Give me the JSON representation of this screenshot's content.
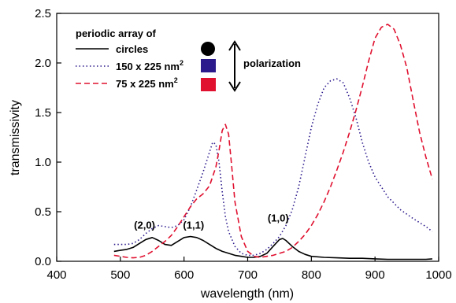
{
  "chart_data": {
    "type": "line",
    "xlabel": "wavelength (nm)",
    "ylabel": "transmissivity",
    "xlim": [
      400,
      1000
    ],
    "ylim": [
      0,
      2.5
    ],
    "x_ticks": [
      400,
      500,
      600,
      700,
      800,
      900,
      1000
    ],
    "y_ticks": [
      0.0,
      0.5,
      1.0,
      1.5,
      2.0,
      2.5
    ],
    "x_tick_labels": [
      "400",
      "500",
      "600",
      "700",
      "800",
      "900",
      "1000"
    ],
    "y_tick_labels": [
      "0.0",
      "0.5",
      "1.0",
      "1.5",
      "2.0",
      "2.5"
    ],
    "grid": false,
    "legend": {
      "placement": "top-left",
      "heading": "periodic array of",
      "entries": [
        {
          "label": "circles",
          "label_sup": "",
          "style": "solid",
          "color": "#000000",
          "swatch": "circle"
        },
        {
          "label": "150 x 225 nm",
          "label_sup": "2",
          "style": "dotted",
          "color": "#2b1a8c",
          "swatch": "square"
        },
        {
          "label": "75 x 225 nm",
          "label_sup": "2",
          "style": "dashed",
          "color": "#e0102f",
          "swatch": "square"
        }
      ],
      "polarization_label": "polarization"
    },
    "annotations": [
      {
        "text": "(2,0)",
        "x": 538,
        "y": 0.33
      },
      {
        "text": "(1,1)",
        "x": 615,
        "y": 0.33
      },
      {
        "text": "(1,0)",
        "x": 748,
        "y": 0.4
      }
    ],
    "series": [
      {
        "name": "circles",
        "color": "#000000",
        "style": "solid",
        "x": [
          490,
          500,
          510,
          520,
          530,
          540,
          550,
          560,
          570,
          580,
          590,
          600,
          610,
          620,
          630,
          640,
          650,
          660,
          670,
          680,
          690,
          700,
          710,
          720,
          730,
          740,
          750,
          755,
          760,
          770,
          780,
          790,
          800,
          820,
          840,
          860,
          880,
          900,
          920,
          940,
          960,
          980,
          990
        ],
        "y": [
          0.1,
          0.11,
          0.12,
          0.14,
          0.18,
          0.22,
          0.24,
          0.21,
          0.17,
          0.16,
          0.2,
          0.24,
          0.25,
          0.24,
          0.21,
          0.17,
          0.13,
          0.1,
          0.08,
          0.06,
          0.05,
          0.04,
          0.04,
          0.05,
          0.08,
          0.15,
          0.22,
          0.23,
          0.21,
          0.15,
          0.1,
          0.07,
          0.05,
          0.04,
          0.035,
          0.03,
          0.03,
          0.025,
          0.02,
          0.02,
          0.02,
          0.02,
          0.025
        ]
      },
      {
        "name": "150 x 225 nm2",
        "color": "#2b1a8c",
        "style": "dotted",
        "x": [
          490,
          500,
          510,
          520,
          530,
          540,
          550,
          560,
          570,
          580,
          590,
          600,
          610,
          620,
          630,
          640,
          645,
          650,
          655,
          660,
          665,
          670,
          680,
          690,
          700,
          710,
          720,
          730,
          740,
          750,
          760,
          770,
          780,
          790,
          800,
          810,
          820,
          830,
          840,
          850,
          860,
          870,
          880,
          890,
          900,
          920,
          940,
          960,
          980,
          990
        ],
        "y": [
          0.17,
          0.17,
          0.17,
          0.18,
          0.22,
          0.28,
          0.33,
          0.36,
          0.35,
          0.34,
          0.36,
          0.42,
          0.55,
          0.72,
          0.9,
          1.1,
          1.2,
          1.18,
          1.0,
          0.7,
          0.45,
          0.3,
          0.15,
          0.08,
          0.06,
          0.06,
          0.08,
          0.12,
          0.18,
          0.25,
          0.36,
          0.52,
          0.75,
          1.05,
          1.35,
          1.58,
          1.75,
          1.82,
          1.84,
          1.8,
          1.65,
          1.45,
          1.2,
          1.0,
          0.85,
          0.65,
          0.52,
          0.43,
          0.35,
          0.3
        ]
      },
      {
        "name": "75 x 225 nm2",
        "color": "#e0102f",
        "style": "dashed",
        "x": [
          490,
          500,
          510,
          520,
          530,
          540,
          550,
          560,
          570,
          580,
          590,
          600,
          610,
          620,
          630,
          640,
          650,
          655,
          660,
          665,
          670,
          675,
          680,
          690,
          700,
          710,
          720,
          730,
          740,
          750,
          760,
          770,
          780,
          790,
          800,
          810,
          820,
          830,
          840,
          850,
          860,
          870,
          880,
          890,
          900,
          910,
          920,
          930,
          940,
          950,
          960,
          970,
          980,
          990
        ],
        "y": [
          0.06,
          0.05,
          0.04,
          0.035,
          0.04,
          0.06,
          0.1,
          0.15,
          0.2,
          0.26,
          0.35,
          0.45,
          0.55,
          0.63,
          0.68,
          0.76,
          0.95,
          1.12,
          1.32,
          1.38,
          1.28,
          0.95,
          0.6,
          0.25,
          0.1,
          0.05,
          0.04,
          0.05,
          0.06,
          0.08,
          0.1,
          0.14,
          0.2,
          0.27,
          0.36,
          0.47,
          0.6,
          0.75,
          0.92,
          1.1,
          1.3,
          1.52,
          1.76,
          2.02,
          2.25,
          2.36,
          2.39,
          2.34,
          2.18,
          1.95,
          1.62,
          1.3,
          1.05,
          0.83
        ]
      }
    ]
  }
}
